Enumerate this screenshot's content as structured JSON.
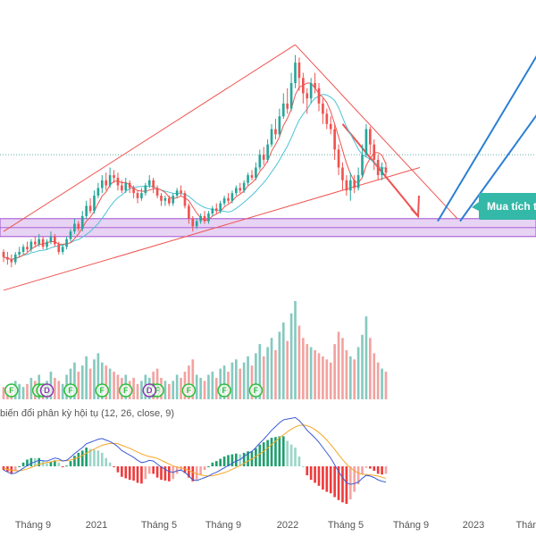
{
  "chart_data": {
    "type": "candlestick",
    "x_ticks": [
      "Tháng 9",
      "2021",
      "Tháng 5",
      "Tháng 9",
      "2022",
      "Tháng 5",
      "Tháng 9",
      "2023",
      "Thán"
    ],
    "candles": [
      [
        22,
        20,
        23,
        18
      ],
      [
        20,
        19,
        22,
        17
      ],
      [
        19,
        18,
        21,
        16
      ],
      [
        18,
        21,
        22,
        17
      ],
      [
        21,
        22,
        24,
        20
      ],
      [
        22,
        24,
        25,
        21
      ],
      [
        24,
        23,
        26,
        22
      ],
      [
        23,
        26,
        27,
        22
      ],
      [
        26,
        25,
        28,
        24
      ],
      [
        25,
        27,
        29,
        24
      ],
      [
        27,
        24,
        28,
        23
      ],
      [
        24,
        26,
        27,
        23
      ],
      [
        26,
        28,
        30,
        25
      ],
      [
        28,
        25,
        29,
        24
      ],
      [
        25,
        22,
        26,
        21
      ],
      [
        22,
        24,
        25,
        21
      ],
      [
        24,
        27,
        28,
        23
      ],
      [
        27,
        30,
        31,
        26
      ],
      [
        30,
        33,
        35,
        29
      ],
      [
        33,
        31,
        34,
        30
      ],
      [
        31,
        36,
        38,
        30
      ],
      [
        36,
        40,
        42,
        35
      ],
      [
        40,
        38,
        43,
        37
      ],
      [
        38,
        44,
        46,
        37
      ],
      [
        44,
        47,
        49,
        43
      ],
      [
        47,
        50,
        52,
        45
      ],
      [
        50,
        48,
        53,
        46
      ],
      [
        48,
        52,
        55,
        47
      ],
      [
        52,
        51,
        54,
        49
      ],
      [
        51,
        48,
        53,
        46
      ],
      [
        48,
        46,
        50,
        45
      ],
      [
        46,
        49,
        51,
        45
      ],
      [
        49,
        47,
        50,
        45
      ],
      [
        47,
        45,
        48,
        43
      ],
      [
        45,
        43,
        46,
        41
      ],
      [
        43,
        45,
        47,
        42
      ],
      [
        45,
        48,
        49,
        44
      ],
      [
        48,
        50,
        52,
        47
      ],
      [
        50,
        47,
        51,
        45
      ],
      [
        47,
        44,
        48,
        43
      ],
      [
        44,
        42,
        45,
        40
      ],
      [
        42,
        43,
        44,
        40
      ],
      [
        43,
        41,
        44,
        40
      ],
      [
        41,
        44,
        45,
        40
      ],
      [
        44,
        46,
        47,
        43
      ],
      [
        46,
        45,
        48,
        44
      ],
      [
        45,
        40,
        46,
        39
      ],
      [
        40,
        35,
        41,
        33
      ],
      [
        35,
        32,
        36,
        30
      ],
      [
        32,
        34,
        35,
        31
      ],
      [
        34,
        36,
        37,
        33
      ],
      [
        36,
        34,
        38,
        33
      ],
      [
        34,
        37,
        38,
        33
      ],
      [
        37,
        39,
        40,
        36
      ],
      [
        39,
        38,
        41,
        37
      ],
      [
        38,
        41,
        42,
        37
      ],
      [
        41,
        43,
        44,
        40
      ],
      [
        43,
        42,
        45,
        41
      ],
      [
        42,
        45,
        46,
        41
      ],
      [
        45,
        47,
        48,
        44
      ],
      [
        47,
        46,
        49,
        45
      ],
      [
        46,
        49,
        50,
        45
      ],
      [
        49,
        52,
        53,
        48
      ],
      [
        52,
        51,
        54,
        50
      ],
      [
        51,
        55,
        57,
        50
      ],
      [
        55,
        60,
        62,
        54
      ],
      [
        60,
        58,
        63,
        56
      ],
      [
        58,
        64,
        66,
        57
      ],
      [
        64,
        70,
        72,
        63
      ],
      [
        70,
        68,
        74,
        66
      ],
      [
        68,
        75,
        78,
        67
      ],
      [
        75,
        80,
        84,
        74
      ],
      [
        80,
        78,
        86,
        76
      ],
      [
        78,
        88,
        92,
        77
      ],
      [
        88,
        96,
        99,
        86
      ],
      [
        96,
        90,
        98,
        85
      ],
      [
        90,
        84,
        92,
        80
      ],
      [
        84,
        82,
        86,
        76
      ],
      [
        82,
        88,
        90,
        80
      ],
      [
        88,
        86,
        92,
        84
      ],
      [
        86,
        80,
        88,
        77
      ],
      [
        80,
        76,
        82,
        72
      ],
      [
        76,
        72,
        78,
        70
      ],
      [
        72,
        70,
        75,
        68
      ],
      [
        70,
        62,
        72,
        58
      ],
      [
        62,
        55,
        64,
        52
      ],
      [
        55,
        50,
        57,
        46
      ],
      [
        50,
        46,
        52,
        44
      ],
      [
        46,
        50,
        53,
        42
      ],
      [
        50,
        47,
        52,
        45
      ],
      [
        47,
        52,
        55,
        46
      ],
      [
        52,
        60,
        64,
        51
      ],
      [
        60,
        70,
        72,
        59
      ],
      [
        70,
        64,
        71,
        60
      ],
      [
        64,
        58,
        66,
        54
      ],
      [
        58,
        52,
        60,
        50
      ],
      [
        52,
        55,
        57,
        50
      ],
      [
        55,
        53,
        57,
        52
      ]
    ],
    "volume_note": "volume bars shown as histogram",
    "volume": [
      4,
      3,
      4,
      6,
      5,
      4,
      5,
      7,
      6,
      8,
      5,
      6,
      9,
      7,
      6,
      5,
      8,
      10,
      12,
      9,
      11,
      14,
      10,
      13,
      15,
      12,
      11,
      10,
      9,
      8,
      7,
      8,
      6,
      7,
      5,
      6,
      8,
      7,
      9,
      10,
      7,
      6,
      5,
      6,
      8,
      7,
      9,
      11,
      13,
      8,
      7,
      6,
      8,
      9,
      7,
      10,
      11,
      9,
      12,
      13,
      10,
      12,
      14,
      11,
      15,
      18,
      14,
      17,
      20,
      16,
      22,
      25,
      19,
      28,
      32,
      24,
      20,
      18,
      17,
      16,
      15,
      14,
      13,
      12,
      18,
      22,
      20,
      16,
      14,
      13,
      17,
      21,
      27,
      20,
      15,
      12,
      10,
      9
    ],
    "signals_F": [
      2,
      9,
      10,
      17,
      25,
      31,
      38,
      39,
      47,
      56,
      64
    ],
    "signals_D": [
      11,
      37
    ],
    "macd": {
      "title": "biến đổi phân kỳ hội tụ (12, 26, close, 9)",
      "macd_line": [
        -1,
        -1.5,
        -2,
        -1.8,
        -1.2,
        -0.5,
        0.2,
        0.8,
        1.2,
        1.6,
        1.5,
        1.4,
        1.8,
        2.2,
        2.0,
        1.4,
        1.6,
        2.4,
        3.4,
        4.2,
        5.0,
        6.0,
        6.4,
        6.8,
        7.2,
        7.4,
        7.0,
        6.6,
        6.0,
        5.2,
        4.2,
        3.6,
        3.0,
        2.4,
        1.6,
        1.0,
        1.2,
        1.6,
        1.4,
        0.6,
        -0.2,
        -0.8,
        -1.4,
        -1.6,
        -1.2,
        -1.0,
        -1.6,
        -2.6,
        -3.6,
        -3.8,
        -3.4,
        -3.0,
        -2.6,
        -2.0,
        -1.6,
        -1.0,
        -0.4,
        0.2,
        0.8,
        1.4,
        1.8,
        2.6,
        3.4,
        4.0,
        5.0,
        6.2,
        7.2,
        8.4,
        9.6,
        10.6,
        11.6,
        12.4,
        12.6,
        12.8,
        13.0,
        12.2,
        11.0,
        9.6,
        8.6,
        7.6,
        6.4,
        5.0,
        3.6,
        2.2,
        0.4,
        -1.4,
        -3.0,
        -4.4,
        -4.8,
        -4.6,
        -4.2,
        -3.2,
        -2.4,
        -2.6,
        -3.0,
        -3.6,
        -4.0,
        -4.2
      ],
      "signal_line": [
        -0.5,
        -0.8,
        -1.0,
        -1.2,
        -1.2,
        -1.0,
        -0.7,
        -0.3,
        0.1,
        0.5,
        0.8,
        1.0,
        1.2,
        1.4,
        1.5,
        1.5,
        1.5,
        1.7,
        2.0,
        2.4,
        2.9,
        3.5,
        4.1,
        4.6,
        5.1,
        5.6,
        5.9,
        6.1,
        6.1,
        6.0,
        5.6,
        5.2,
        4.8,
        4.3,
        3.8,
        3.3,
        2.9,
        2.6,
        2.4,
        2.1,
        1.6,
        1.1,
        0.6,
        0.1,
        -0.2,
        -0.4,
        -0.7,
        -1.1,
        -1.6,
        -2.0,
        -2.3,
        -2.5,
        -2.6,
        -2.5,
        -2.3,
        -2.0,
        -1.7,
        -1.3,
        -0.8,
        -0.3,
        0.2,
        0.8,
        1.4,
        2.0,
        2.6,
        3.3,
        4.0,
        4.9,
        5.8,
        6.7,
        7.6,
        8.4,
        9.2,
        9.9,
        10.5,
        10.9,
        11.0,
        10.8,
        10.4,
        9.8,
        9.0,
        8.1,
        7.0,
        5.8,
        4.5,
        3.1,
        1.8,
        0.6,
        -0.4,
        -1.2,
        -1.8,
        -2.1,
        -2.2,
        -2.3,
        -2.4,
        -2.6,
        -2.9,
        -3.2
      ]
    }
  },
  "annotations": {
    "callout_text": "Mua tích t"
  },
  "colors": {
    "up": "#26a69a",
    "down": "#ef5350",
    "volume_up": "#86c9bf",
    "volume_down": "#f2a3a0",
    "ma_fast": "#ef5350",
    "ma_slow": "#4dc3d6",
    "trend_line": "#ef5350",
    "zone_fill": "#e7d3f3",
    "zone_stroke": "#a14fd0",
    "projection_blue": "#2c7fd4",
    "callout_bg": "#34b8a8",
    "signal_green": "#2bbf3a",
    "signal_purple": "#8e3ab0",
    "macd_line": "#3b5bd6",
    "signal_line_color": "#f5a623",
    "dotted_level": "#4aa9a0"
  }
}
